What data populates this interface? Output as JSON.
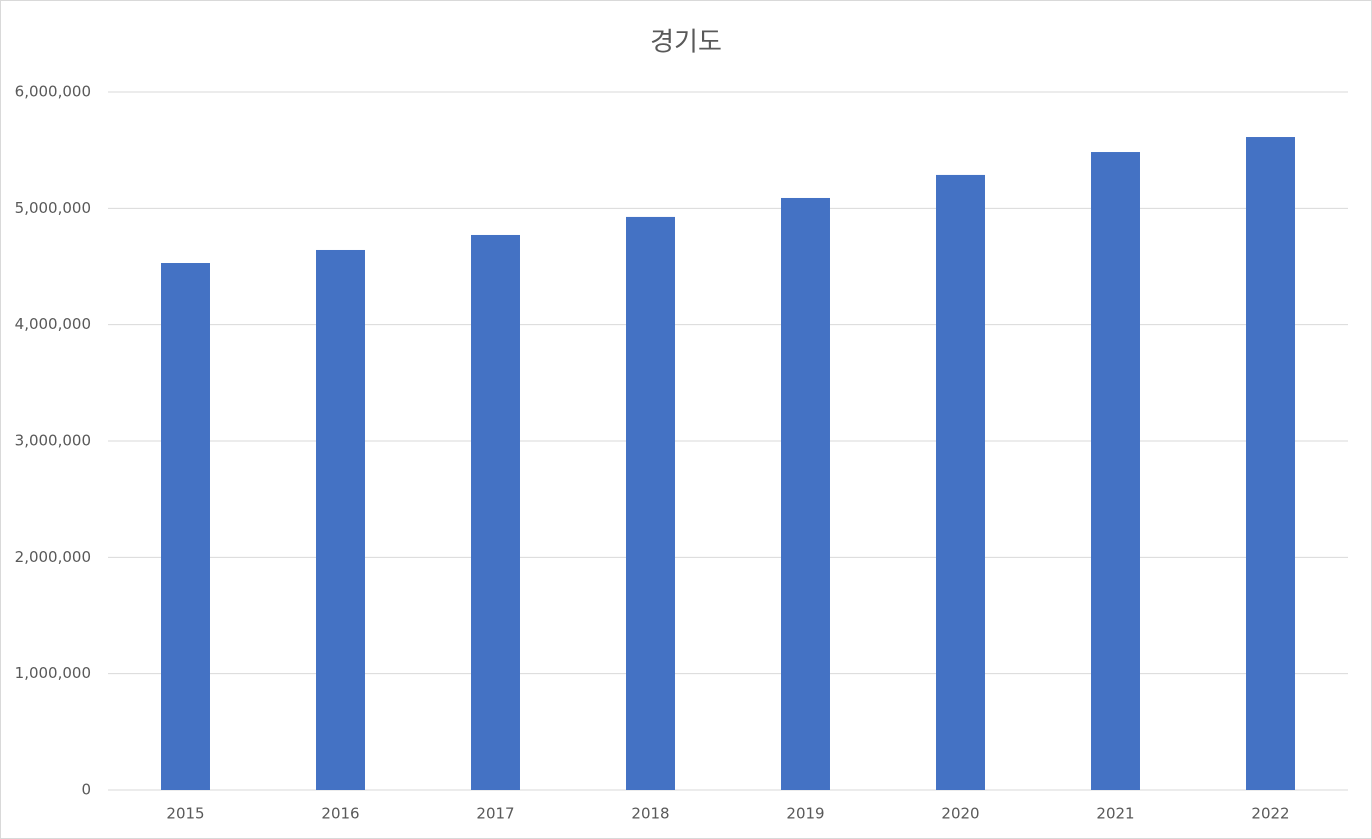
{
  "chart_data": {
    "type": "bar",
    "title": "경기도",
    "categories": [
      "2015",
      "2016",
      "2017",
      "2018",
      "2019",
      "2020",
      "2021",
      "2022"
    ],
    "values": [
      4530000,
      4642000,
      4771000,
      4926000,
      5089000,
      5287000,
      5484000,
      5613000
    ],
    "color": "#4472c4",
    "ylim": [
      0,
      6000000
    ],
    "yticks": [
      0,
      {
        "value": 1000000,
        "label": "1,000,000"
      },
      {
        "value": 2000000,
        "label": "2,000,000"
      },
      {
        "value": 3000000,
        "label": "3,000,000"
      },
      {
        "value": 4000000,
        "label": "4,000,000"
      },
      {
        "value": 5000000,
        "label": "5,000,000"
      },
      {
        "value": 6000000,
        "label": "6,000,000"
      }
    ],
    "grid": true
  }
}
